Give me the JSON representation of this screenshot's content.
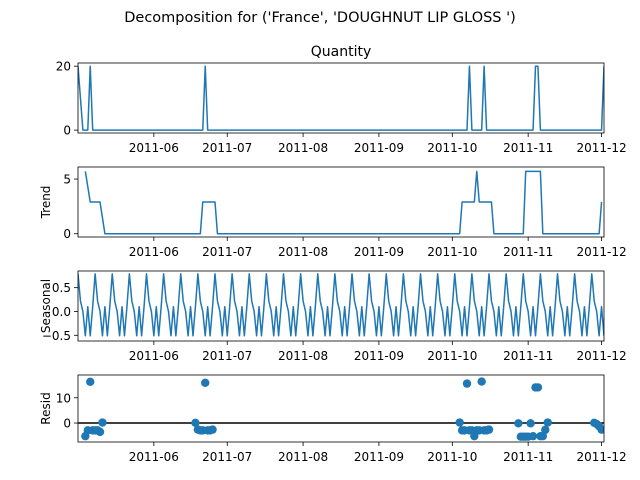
{
  "figure": {
    "title": "Decomposition for ('France', 'DOUGHNUT LIP GLOSS ')"
  },
  "chart_data": [
    {
      "type": "line",
      "panel": "observed",
      "title": "Quantity",
      "ylabel": "",
      "xlim": [
        "2011-05-01",
        "2011-12-02"
      ],
      "ylim": [
        -0.9,
        21
      ],
      "yticks": [
        0,
        20
      ],
      "xticks": [
        "2011-06",
        "2011-07",
        "2011-08",
        "2011-09",
        "2011-10",
        "2011-11",
        "2011-12"
      ],
      "color": "#1f77b4",
      "x": [
        "2011-05-01",
        "2011-05-03",
        "2011-05-05",
        "2011-05-06",
        "2011-05-07",
        "2011-06-21",
        "2011-06-22",
        "2011-06-23",
        "2011-10-07",
        "2011-10-08",
        "2011-10-09",
        "2011-10-13",
        "2011-10-14",
        "2011-10-15",
        "2011-11-03",
        "2011-11-04",
        "2011-11-05",
        "2011-11-06",
        "2011-12-01",
        "2011-12-02"
      ],
      "y": [
        20,
        0,
        0,
        20,
        0,
        0,
        20,
        0,
        0,
        20,
        0,
        0,
        20,
        0,
        0,
        20,
        20,
        0,
        0,
        20
      ]
    },
    {
      "type": "line",
      "panel": "trend",
      "title": "",
      "ylabel": "Trend",
      "xlim": [
        "2011-05-01",
        "2011-12-02"
      ],
      "ylim": [
        -0.3,
        6.1
      ],
      "yticks": [
        0,
        5
      ],
      "xticks": [
        "2011-06",
        "2011-07",
        "2011-08",
        "2011-09",
        "2011-10",
        "2011-11",
        "2011-12"
      ],
      "color": "#1f77b4",
      "x": [
        "2011-05-04",
        "2011-05-06",
        "2011-05-10",
        "2011-05-12",
        "2011-06-20",
        "2011-06-21",
        "2011-06-26",
        "2011-06-27",
        "2011-10-04",
        "2011-10-05",
        "2011-10-10",
        "2011-10-11",
        "2011-10-12",
        "2011-10-17",
        "2011-10-18",
        "2011-10-30",
        "2011-10-31",
        "2011-11-06",
        "2011-11-07",
        "2011-11-30",
        "2011-12-01"
      ],
      "y": [
        5.7,
        2.9,
        2.9,
        0,
        0,
        2.9,
        2.9,
        0,
        0,
        2.9,
        2.9,
        5.7,
        2.9,
        2.9,
        0,
        0,
        5.7,
        5.7,
        0,
        0,
        2.9
      ]
    },
    {
      "type": "line",
      "panel": "seasonal",
      "title": "",
      "ylabel": "Seasonal",
      "xlim": [
        "2011-05-01",
        "2011-12-02"
      ],
      "ylim": [
        -0.62,
        0.85
      ],
      "yticks": [
        0.5,
        0.0,
        -0.5
      ],
      "ytick_labels": [
        "0.5",
        "0.0",
        "−0.5"
      ],
      "xticks": [
        "2011-06",
        "2011-07",
        "2011-08",
        "2011-09",
        "2011-10",
        "2011-11",
        "2011-12"
      ],
      "color": "#1f77b4",
      "x_start": "2011-05-01",
      "x_end": "2011-12-02",
      "period_days": 7,
      "pattern": [
        0.79,
        0.22,
        0.0,
        -0.51,
        0.1,
        -0.51,
        0.1
      ]
    },
    {
      "type": "scatter",
      "panel": "resid",
      "title": "",
      "ylabel": "Resid",
      "xlim": [
        "2011-05-01",
        "2011-12-02"
      ],
      "ylim": [
        -7.5,
        19
      ],
      "yticks": [
        10,
        0
      ],
      "xticks": [
        "2011-06",
        "2011-07",
        "2011-08",
        "2011-09",
        "2011-10",
        "2011-11",
        "2011-12"
      ],
      "color": "#1f77b4",
      "hline": 0,
      "x": [
        "2011-05-04",
        "2011-05-05",
        "2011-05-06",
        "2011-05-07",
        "2011-05-08",
        "2011-05-09",
        "2011-05-10",
        "2011-05-11",
        "2011-06-18",
        "2011-06-19",
        "2011-06-20",
        "2011-06-21",
        "2011-06-22",
        "2011-06-23",
        "2011-06-24",
        "2011-06-25",
        "2011-10-04",
        "2011-10-05",
        "2011-10-06",
        "2011-10-07",
        "2011-10-08",
        "2011-10-09",
        "2011-10-10",
        "2011-10-11",
        "2011-10-12",
        "2011-10-13",
        "2011-10-14",
        "2011-10-15",
        "2011-10-16",
        "2011-10-28",
        "2011-10-29",
        "2011-10-30",
        "2011-10-31",
        "2011-11-01",
        "2011-11-02",
        "2011-11-03",
        "2011-11-04",
        "2011-11-05",
        "2011-11-06",
        "2011-11-07",
        "2011-11-08",
        "2011-11-09",
        "2011-11-28",
        "2011-11-29",
        "2011-11-30",
        "2011-12-01"
      ],
      "y": [
        -5.2,
        -2.9,
        16.3,
        -2.9,
        -2.9,
        -2.9,
        -3.5,
        0.2,
        0.1,
        -2.6,
        -2.9,
        -2.9,
        15.9,
        -2.9,
        -2.9,
        -2.6,
        0.2,
        -2.9,
        -2.9,
        15.6,
        -2.9,
        -2.9,
        -5.2,
        -2.9,
        -2.9,
        16.4,
        -2.9,
        -2.9,
        -2.6,
        -0.1,
        -5.4,
        -5.4,
        -5.4,
        -5.4,
        -0.1,
        -5.2,
        14.1,
        14.1,
        -5.2,
        -5.2,
        -2.7,
        0.2,
        0.1,
        -0.4,
        -1.3,
        -2.6
      ]
    }
  ]
}
